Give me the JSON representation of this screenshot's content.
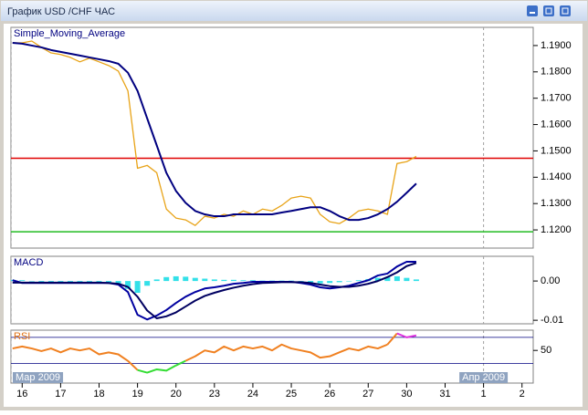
{
  "window": {
    "title": "График USD /CHF  ЧАС"
  },
  "chart_data": [
    {
      "type": "line",
      "label": "Simple_Moving_Average",
      "x": [
        -6,
        0,
        6,
        12,
        18,
        24,
        30,
        36,
        42,
        48,
        54,
        60,
        66,
        72,
        78,
        84,
        90,
        96,
        102,
        108,
        114,
        120,
        126,
        132,
        138,
        144,
        150,
        156,
        162,
        168,
        174,
        180,
        186,
        192,
        198,
        204,
        210,
        216,
        222,
        228,
        234,
        240,
        246
      ],
      "xlim": [
        -7,
        319
      ],
      "xticks": [
        {
          "value": 0,
          "label": "16"
        },
        {
          "value": 24,
          "label": "17"
        },
        {
          "value": 48,
          "label": "18"
        },
        {
          "value": 72,
          "label": "19"
        },
        {
          "value": 96,
          "label": "20"
        },
        {
          "value": 120,
          "label": "23"
        },
        {
          "value": 144,
          "label": "24"
        },
        {
          "value": 168,
          "label": "25"
        },
        {
          "value": 192,
          "label": "26"
        },
        {
          "value": 216,
          "label": "27"
        },
        {
          "value": 240,
          "label": "30"
        },
        {
          "value": 264,
          "label": "31"
        },
        {
          "value": 288,
          "label": "1"
        },
        {
          "value": 312,
          "label": "2"
        }
      ],
      "period_labels": [
        {
          "value": -7,
          "label": "Мар 2009"
        },
        {
          "value": 288,
          "label": "Апр 2009"
        }
      ],
      "ylim": [
        1.1131,
        1.1969
      ],
      "yticks": [
        {
          "value": 1.19,
          "label": "1.1900"
        },
        {
          "value": 1.18,
          "label": "1.1800"
        },
        {
          "value": 1.17,
          "label": "1.1700"
        },
        {
          "value": 1.16,
          "label": "1.1600"
        },
        {
          "value": 1.15,
          "label": "1.1500"
        },
        {
          "value": 1.14,
          "label": "1.1400"
        },
        {
          "value": 1.13,
          "label": "1.1300"
        },
        {
          "value": 1.12,
          "label": "1.1200"
        }
      ],
      "hlines": [
        {
          "value": 1.1472,
          "color": "#e00000"
        },
        {
          "value": 1.1193,
          "color": "#22bb22"
        }
      ],
      "series": [
        {
          "color": "#e8a317",
          "width": 1.3,
          "values": [
            1.191,
            1.191,
            1.1917,
            1.1893,
            1.1872,
            1.1866,
            1.1855,
            1.1838,
            1.1852,
            1.1838,
            1.1824,
            1.1803,
            1.1728,
            1.1434,
            1.1445,
            1.1417,
            1.1279,
            1.1245,
            1.1238,
            1.1217,
            1.1252,
            1.1245,
            1.1259,
            1.1252,
            1.1272,
            1.1259,
            1.1279,
            1.1272,
            1.1293,
            1.1321,
            1.1328,
            1.1321,
            1.1259,
            1.1231,
            1.1224,
            1.1245,
            1.1272,
            1.1279,
            1.1272,
            1.1259,
            1.1452,
            1.1459,
            1.1479
          ]
        },
        {
          "color": "#000080",
          "width": 2,
          "values": [
            1.191,
            1.1907,
            1.19,
            1.1893,
            1.1883,
            1.1876,
            1.1869,
            1.1862,
            1.1855,
            1.1848,
            1.1841,
            1.1831,
            1.1797,
            1.1728,
            1.1624,
            1.1521,
            1.1417,
            1.1348,
            1.1303,
            1.1272,
            1.1259,
            1.1252,
            1.1252,
            1.1259,
            1.1259,
            1.1259,
            1.1259,
            1.1259,
            1.1266,
            1.1272,
            1.1279,
            1.1286,
            1.1286,
            1.1272,
            1.1252,
            1.1238,
            1.1238,
            1.1245,
            1.1259,
            1.1279,
            1.1307,
            1.1341,
            1.1376
          ]
        }
      ]
    },
    {
      "type": "line",
      "label": "MACD",
      "x": [
        -6,
        0,
        6,
        12,
        18,
        24,
        30,
        36,
        42,
        48,
        54,
        60,
        66,
        72,
        78,
        84,
        90,
        96,
        102,
        108,
        114,
        120,
        126,
        132,
        138,
        144,
        150,
        156,
        162,
        168,
        174,
        180,
        186,
        192,
        198,
        204,
        210,
        216,
        222,
        228,
        234,
        240,
        246
      ],
      "ylim": [
        -0.0109,
        0.0063
      ],
      "yticks": [
        {
          "value": 0,
          "label": "0.00"
        },
        {
          "value": -0.01,
          "label": "-0.01"
        }
      ],
      "series": [
        {
          "style": "histogram",
          "color": "#33e0e8",
          "values": [
            0.0003,
            0.0002,
            0.0,
            -0.0003,
            -0.0005,
            -0.0004,
            -0.0003,
            -0.0004,
            -0.0002,
            -0.0003,
            -0.0005,
            -0.0008,
            -0.002,
            -0.003,
            -0.0012,
            0.0004,
            0.001,
            0.0012,
            0.0011,
            0.0008,
            0.0006,
            0.0004,
            0.0003,
            0.0003,
            0.0002,
            0.0002,
            0.0001,
            0.0001,
            0.0001,
            0.0001,
            -0.0002,
            -0.0004,
            -0.0006,
            -0.0005,
            -0.0003,
            -0.0001,
            0.0002,
            0.0005,
            0.0008,
            0.001,
            0.0012,
            0.0008,
            0.0004
          ]
        },
        {
          "color": "#0000a0",
          "width": 2,
          "values": [
            0.0002,
            -0.0005,
            -0.0005,
            -0.0005,
            -0.0005,
            -0.0005,
            -0.0005,
            -0.0005,
            -0.0005,
            -0.0005,
            -0.0005,
            -0.0009,
            -0.0028,
            -0.0086,
            -0.0098,
            -0.0088,
            -0.0074,
            -0.0056,
            -0.004,
            -0.0028,
            -0.0019,
            -0.0016,
            -0.0012,
            -0.0007,
            -0.0005,
            -0.0002,
            -0.0002,
            -0.0002,
            -0.0002,
            -0.0002,
            -0.0005,
            -0.0009,
            -0.0016,
            -0.0019,
            -0.0016,
            -0.0012,
            -0.0005,
            0.0002,
            0.0014,
            0.0019,
            0.0037,
            0.0049,
            0.0049
          ]
        },
        {
          "color": "#000060",
          "width": 2,
          "values": [
            -0.0004,
            -0.0004,
            -0.0004,
            -0.0004,
            -0.0004,
            -0.0004,
            -0.0004,
            -0.0004,
            -0.0004,
            -0.0004,
            -0.0005,
            -0.0007,
            -0.0015,
            -0.004,
            -0.0075,
            -0.0095,
            -0.009,
            -0.008,
            -0.0065,
            -0.005,
            -0.0038,
            -0.003,
            -0.0023,
            -0.0017,
            -0.0012,
            -0.0008,
            -0.0005,
            -0.0004,
            -0.0003,
            -0.0003,
            -0.0003,
            -0.0005,
            -0.0009,
            -0.0013,
            -0.0015,
            -0.0015,
            -0.0012,
            -0.0007,
            0.0,
            0.001,
            0.0022,
            0.0038,
            0.0046
          ]
        }
      ]
    },
    {
      "type": "line",
      "label": "RSI",
      "x": [
        -6,
        0,
        6,
        12,
        18,
        24,
        30,
        36,
        42,
        48,
        54,
        60,
        66,
        72,
        78,
        84,
        90,
        96,
        102,
        108,
        114,
        120,
        126,
        132,
        138,
        144,
        150,
        156,
        162,
        168,
        174,
        180,
        186,
        192,
        198,
        204,
        210,
        216,
        222,
        228,
        234,
        240,
        246
      ],
      "ylim": [
        0,
        81
      ],
      "yticks": [
        50
      ],
      "levels": [
        70,
        30
      ],
      "series": [
        {
          "color": "#f08020",
          "high_color": "#dd33dd",
          "low_color": "#33dd33",
          "width": 2,
          "values": [
            53,
            56,
            53,
            49,
            53,
            47,
            53,
            50,
            53,
            44,
            47,
            44,
            34,
            20,
            16,
            21,
            19,
            27,
            34,
            41,
            50,
            47,
            56,
            50,
            56,
            53,
            56,
            50,
            59,
            53,
            50,
            47,
            39,
            41,
            47,
            53,
            50,
            56,
            53,
            59,
            76,
            70,
            73
          ]
        }
      ]
    }
  ]
}
